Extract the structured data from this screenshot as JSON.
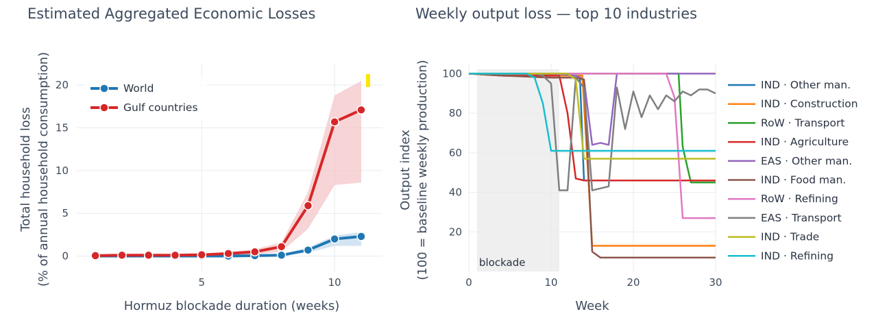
{
  "chart_data": [
    {
      "type": "line",
      "title": "Estimated Aggregated Economic Losses",
      "xlabel": "Hormuz blockade duration (weeks)",
      "ylabel_line1": "Total household loss",
      "ylabel_line2": "(% of annual household consumption)",
      "xlim": [
        0.3,
        11.8
      ],
      "ylim": [
        -1.8,
        22.5
      ],
      "xticks": [
        5,
        10
      ],
      "yticks": [
        0,
        5,
        10,
        15,
        20
      ],
      "x": [
        1,
        2,
        3,
        4,
        5,
        6,
        7,
        8,
        9,
        10,
        11
      ],
      "series": [
        {
          "name": "World",
          "color": "#1f77b4",
          "band_color": "#c6dbef",
          "values": [
            0,
            0,
            0,
            0,
            0,
            0,
            0.05,
            0.1,
            0.7,
            2.0,
            2.3
          ],
          "lower": [
            0,
            0,
            0,
            0,
            0,
            0,
            0,
            0.05,
            0.4,
            1.2,
            1.2
          ],
          "upper": [
            0.05,
            0.05,
            0.05,
            0.05,
            0.05,
            0.05,
            0.1,
            0.2,
            1.0,
            2.4,
            2.8
          ]
        },
        {
          "name": "Gulf countries",
          "color": "#d62728",
          "band_color": "#f4c6c8",
          "values": [
            0.05,
            0.1,
            0.1,
            0.1,
            0.15,
            0.3,
            0.5,
            1.1,
            5.9,
            15.7,
            17.1
          ],
          "lower": [
            0,
            0,
            0,
            0,
            0.05,
            0.1,
            0.2,
            0.5,
            3.2,
            8.3,
            8.6
          ],
          "upper": [
            0.1,
            0.15,
            0.2,
            0.2,
            0.3,
            0.5,
            0.8,
            1.6,
            7.5,
            18.8,
            20.5
          ]
        }
      ],
      "marker_color": "#ffe600",
      "legend": "top-left"
    },
    {
      "type": "line",
      "title": "Weekly output loss — top 10 industries",
      "xlabel": "Week",
      "ylabel_line1": "Output index",
      "ylabel_line2": "(100 = baseline weekly production)",
      "xlim": [
        0,
        30
      ],
      "ylim": [
        0,
        105
      ],
      "xticks": [
        0,
        10,
        20,
        30
      ],
      "yticks": [
        20,
        40,
        60,
        80,
        100
      ],
      "blockade": {
        "start": 1,
        "end": 11,
        "label": "blockade",
        "color": "#efefef"
      },
      "legend": "right",
      "series": [
        {
          "name": "IND · Other man.",
          "color": "#1f77b4",
          "x": [
            0,
            4,
            8,
            12,
            13.5,
            14,
            30
          ],
          "y": [
            100,
            100,
            100,
            99,
            99,
            46,
            46
          ]
        },
        {
          "name": "IND · Construction",
          "color": "#ff7f0e",
          "x": [
            0,
            4,
            8,
            12,
            13.8,
            15,
            16,
            30
          ],
          "y": [
            100,
            99,
            99,
            99,
            99,
            13,
            13,
            13
          ]
        },
        {
          "name": "RoW · Transport",
          "color": "#2ca02c",
          "x": [
            0,
            10,
            20,
            25,
            25.5,
            26,
            27,
            30
          ],
          "y": [
            100,
            100,
            100,
            100,
            100,
            63,
            45,
            45
          ]
        },
        {
          "name": "IND · Agriculture",
          "color": "#d62728",
          "x": [
            0,
            4,
            10,
            11,
            12,
            13,
            14,
            30
          ],
          "y": [
            100,
            99,
            99,
            99,
            80,
            47,
            46,
            46
          ]
        },
        {
          "name": "EAS · Other man.",
          "color": "#9467bd",
          "x": [
            0,
            10,
            13,
            14,
            15,
            16,
            17,
            18,
            19,
            30
          ],
          "y": [
            100,
            100,
            99,
            97,
            64,
            65,
            64,
            100,
            100,
            100
          ]
        },
        {
          "name": "IND · Food man.",
          "color": "#8c564b",
          "x": [
            0,
            4,
            10,
            13,
            14,
            15,
            16,
            17,
            30
          ],
          "y": [
            100,
            99,
            98,
            98,
            97,
            10,
            7,
            7,
            7
          ]
        },
        {
          "name": "RoW · Refining",
          "color": "#e377c2",
          "x": [
            0,
            10,
            20,
            24,
            25,
            26,
            30
          ],
          "y": [
            100,
            100,
            100,
            100,
            88,
            27,
            27
          ]
        },
        {
          "name": "EAS · Transport",
          "color": "#7f7f7f",
          "x": [
            0,
            8,
            9,
            10,
            11,
            12,
            13,
            14,
            15,
            16,
            17,
            18,
            19,
            20,
            21,
            22,
            23,
            24,
            25,
            26,
            27,
            28,
            29,
            30
          ],
          "y": [
            100,
            100,
            99,
            95,
            41,
            41,
            98,
            93,
            41,
            42,
            43,
            93,
            72,
            91,
            78,
            89,
            82,
            89,
            86,
            91,
            89,
            92,
            92,
            90
          ]
        },
        {
          "name": "IND · Trade",
          "color": "#bcbd22",
          "x": [
            0,
            8,
            12,
            13,
            14,
            30
          ],
          "y": [
            100,
            100,
            100,
            97,
            57,
            57
          ]
        },
        {
          "name": "IND · Refining",
          "color": "#17becf",
          "x": [
            0,
            7,
            8,
            9,
            10,
            30
          ],
          "y": [
            100,
            100,
            98,
            85,
            61,
            61
          ]
        }
      ]
    }
  ]
}
